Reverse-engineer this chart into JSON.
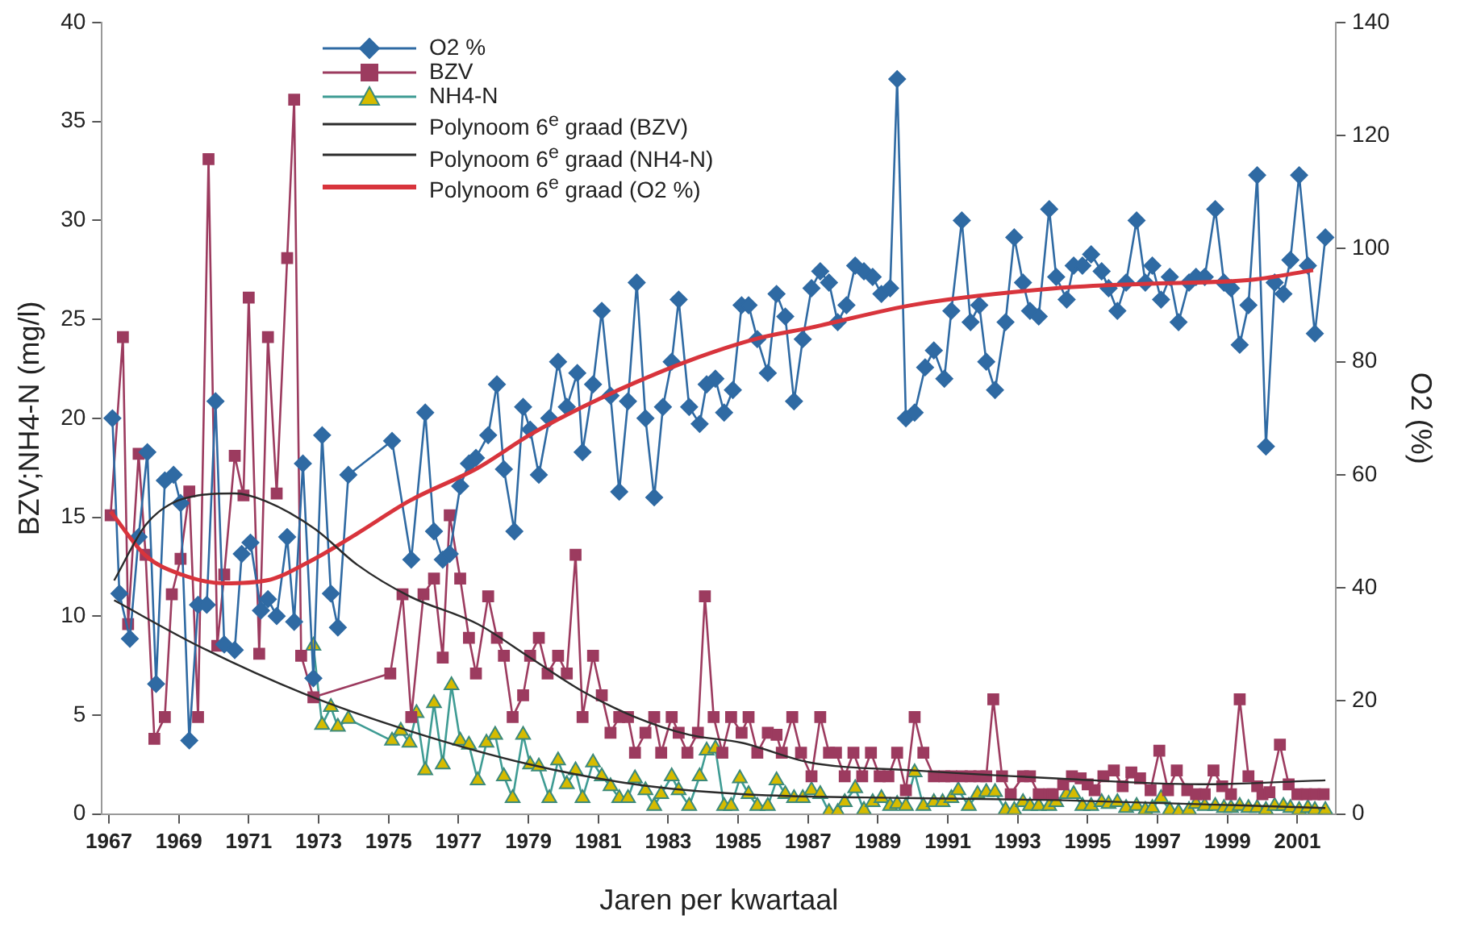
{
  "chart_data": {
    "type": "line",
    "xlabel": "Jaren per kwartaal",
    "ylabel": "BZV;NH4-N (mg/l)",
    "y2label": "O2 (%)",
    "xlim": [
      1966.8,
      2002.1
    ],
    "xticks": [
      1967,
      1969,
      1971,
      1973,
      1975,
      1977,
      1979,
      1981,
      1983,
      1985,
      1987,
      1989,
      1991,
      1993,
      1995,
      1997,
      1999,
      2001
    ],
    "ylim": [
      0,
      40
    ],
    "yticks": [
      0,
      5,
      10,
      15,
      20,
      25,
      30,
      35,
      40
    ],
    "y2lim": [
      0,
      140
    ],
    "y2ticks": [
      0,
      20,
      40,
      60,
      80,
      100,
      120,
      140
    ],
    "grid": false,
    "legend": "top left",
    "series": [
      {
        "name": "O2 %",
        "type": "line",
        "axis": "y2",
        "marker": "diamond",
        "color": "#2f6aa3",
        "x": [
          1967.1,
          1967.3,
          1967.6,
          1967.85,
          1968.1,
          1968.35,
          1968.6,
          1968.85,
          1969.05,
          1969.3,
          1969.55,
          1969.8,
          1970.05,
          1970.3,
          1970.6,
          1970.8,
          1971.05,
          1971.35,
          1971.55,
          1971.8,
          1972.1,
          1972.3,
          1972.55,
          1972.85,
          1973.1,
          1973.35,
          1973.55,
          1973.85,
          1975.1,
          1975.65,
          1976.05,
          1976.3,
          1976.55,
          1976.75,
          1977.05,
          1977.3,
          1977.5,
          1977.85,
          1978.1,
          1978.3,
          1978.6,
          1978.85,
          1979.05,
          1979.3,
          1979.6,
          1979.85,
          1980.1,
          1980.4,
          1980.55,
          1980.85,
          1981.1,
          1981.35,
          1981.6,
          1981.85,
          1982.1,
          1982.35,
          1982.6,
          1982.85,
          1983.1,
          1983.3,
          1983.6,
          1983.9,
          1984.1,
          1984.35,
          1984.6,
          1984.85,
          1985.1,
          1985.3,
          1985.55,
          1985.85,
          1986.1,
          1986.35,
          1986.6,
          1986.85,
          1987.1,
          1987.35,
          1987.6,
          1987.85,
          1988.1,
          1988.35,
          1988.6,
          1988.85,
          1989.1,
          1989.35,
          1989.55,
          1989.8,
          1990.05,
          1990.35,
          1990.6,
          1990.9,
          1991.1,
          1991.4,
          1991.65,
          1991.9,
          1992.1,
          1992.35,
          1992.65,
          1992.9,
          1993.15,
          1993.35,
          1993.6,
          1993.9,
          1994.1,
          1994.4,
          1994.6,
          1994.85,
          1995.1,
          1995.4,
          1995.6,
          1995.85,
          1996.1,
          1996.4,
          1996.65,
          1996.85,
          1997.1,
          1997.35,
          1997.6,
          1997.9,
          1998.1,
          1998.35,
          1998.65,
          1998.9,
          1999.1,
          1999.35,
          1999.6,
          1999.85,
          2000.1,
          2000.35,
          2000.6,
          2000.8,
          2001.05,
          2001.3,
          2001.5,
          2001.8
        ],
        "values": [
          70,
          39,
          31,
          49,
          64,
          23,
          59,
          60,
          55,
          13,
          37,
          37,
          73,
          30,
          29,
          46,
          48,
          36,
          38,
          35,
          49,
          34,
          62,
          24,
          67,
          39,
          33,
          60,
          66,
          45,
          71,
          50,
          45,
          46,
          58,
          62,
          63,
          67,
          76,
          61,
          50,
          72,
          68,
          60,
          70,
          80,
          72,
          78,
          64,
          76,
          89,
          74,
          57,
          73,
          94,
          70,
          56,
          72,
          80,
          91,
          72,
          69,
          76,
          77,
          71,
          75,
          90,
          90,
          84,
          78,
          92,
          88,
          73,
          84,
          93,
          96,
          94,
          87,
          90,
          97,
          96,
          95,
          92,
          93,
          130,
          70,
          71,
          79,
          82,
          77,
          89,
          105,
          87,
          90,
          80,
          75,
          87,
          102,
          94,
          89,
          88,
          107,
          95,
          91,
          97,
          97,
          99,
          96,
          93,
          89,
          94,
          105,
          94,
          97,
          91,
          95,
          87,
          94,
          95,
          95,
          107,
          94,
          93,
          83,
          90,
          113,
          65,
          94,
          92,
          98,
          113,
          97,
          85,
          102
        ]
      },
      {
        "name": "BZV",
        "type": "line",
        "axis": "y",
        "marker": "square",
        "color": "#9c3b5f",
        "x": [
          1967.05,
          1967.4,
          1967.55,
          1967.85,
          1968.05,
          1968.3,
          1968.6,
          1968.8,
          1969.05,
          1969.3,
          1969.55,
          1969.85,
          1970.1,
          1970.3,
          1970.6,
          1970.85,
          1971.0,
          1971.3,
          1971.55,
          1971.8,
          1972.1,
          1972.3,
          1972.5,
          1972.85,
          1975.05,
          1975.4,
          1975.65,
          1976.0,
          1976.3,
          1976.55,
          1976.75,
          1977.05,
          1977.3,
          1977.5,
          1977.85,
          1978.1,
          1978.3,
          1978.55,
          1978.85,
          1979.05,
          1979.3,
          1979.55,
          1979.85,
          1980.1,
          1980.35,
          1980.55,
          1980.85,
          1981.1,
          1981.35,
          1981.6,
          1981.85,
          1982.05,
          1982.35,
          1982.6,
          1982.8,
          1983.1,
          1983.3,
          1983.55,
          1983.85,
          1984.05,
          1984.3,
          1984.55,
          1984.8,
          1985.1,
          1985.3,
          1985.55,
          1985.85,
          1986.1,
          1986.25,
          1986.55,
          1986.8,
          1987.1,
          1987.35,
          1987.6,
          1987.8,
          1988.05,
          1988.3,
          1988.55,
          1988.8,
          1989.05,
          1989.3,
          1989.55,
          1989.8,
          1990.05,
          1990.3,
          1990.6,
          1990.9,
          1991.1,
          1991.4,
          1991.65,
          1991.9,
          1992.1,
          1992.3,
          1992.55,
          1992.8,
          1993.15,
          1993.35,
          1993.6,
          1993.9,
          1994.0,
          1994.3,
          1994.55,
          1994.8,
          1995.0,
          1995.2,
          1995.45,
          1995.75,
          1996.0,
          1996.25,
          1996.5,
          1996.8,
          1997.05,
          1997.3,
          1997.55,
          1997.85,
          1998.1,
          1998.35,
          1998.6,
          1998.85,
          1999.1,
          1999.35,
          1999.6,
          1999.85,
          2000.0,
          2000.2,
          2000.5,
          2000.75,
          2001.0,
          2001.25,
          2001.5,
          2001.75
        ],
        "values": [
          15.1,
          24.1,
          9.6,
          18.2,
          13.1,
          3.8,
          4.9,
          11.1,
          12.9,
          16.3,
          4.9,
          33.1,
          8.5,
          12.1,
          18.1,
          16.1,
          26.1,
          8.1,
          24.1,
          16.2,
          28.1,
          36.1,
          8,
          5.9,
          7.1,
          11.1,
          4.9,
          11.1,
          11.9,
          7.9,
          15.1,
          11.9,
          8.9,
          7.1,
          11,
          8.9,
          8,
          4.9,
          6,
          8,
          8.9,
          7.1,
          8,
          7.1,
          13.1,
          4.9,
          8,
          6,
          4.1,
          4.9,
          4.9,
          3.1,
          4.1,
          4.9,
          3.1,
          4.9,
          4.1,
          3.1,
          4.1,
          11,
          4.9,
          3.1,
          4.9,
          4.1,
          4.9,
          3.1,
          4.1,
          4,
          3.1,
          4.9,
          3.1,
          1.9,
          4.9,
          3.1,
          3.1,
          1.9,
          3.1,
          1.9,
          3.1,
          1.9,
          1.9,
          3.1,
          1.2,
          4.9,
          3.1,
          1.9,
          1.9,
          1.9,
          1.9,
          1.9,
          1.9,
          1.9,
          5.8,
          1.9,
          1,
          1.9,
          1.9,
          1,
          1,
          1,
          1.5,
          1.9,
          1.8,
          1.5,
          1.2,
          1.9,
          2.2,
          1.4,
          2.1,
          1.8,
          1.2,
          3.2,
          1.2,
          2.2,
          1.2,
          1,
          1,
          2.2,
          1.4,
          1,
          5.8,
          1.9,
          1.4,
          1,
          1.1,
          3.5,
          1.5,
          1,
          1,
          1,
          1
        ]
      },
      {
        "name": "NH4-N",
        "type": "line",
        "axis": "y",
        "marker": "triangle",
        "color": "#d6bb00",
        "x": [
          1972.85,
          1973.1,
          1973.35,
          1973.55,
          1973.85,
          1975.1,
          1975.35,
          1975.6,
          1975.8,
          1976.05,
          1976.3,
          1976.55,
          1976.8,
          1977.05,
          1977.3,
          1977.55,
          1977.8,
          1978.05,
          1978.3,
          1978.55,
          1978.85,
          1979.05,
          1979.3,
          1979.6,
          1979.85,
          1980.1,
          1980.35,
          1980.55,
          1980.85,
          1981.1,
          1981.35,
          1981.6,
          1981.85,
          1982.05,
          1982.35,
          1982.6,
          1982.8,
          1983.1,
          1983.3,
          1983.6,
          1983.9,
          1984.1,
          1984.35,
          1984.6,
          1984.8,
          1985.05,
          1985.3,
          1985.55,
          1985.85,
          1986.1,
          1986.35,
          1986.6,
          1986.85,
          1987.1,
          1987.35,
          1987.6,
          1987.85,
          1988.05,
          1988.35,
          1988.6,
          1988.85,
          1989.1,
          1989.35,
          1989.55,
          1989.8,
          1990.05,
          1990.3,
          1990.6,
          1990.85,
          1991.1,
          1991.3,
          1991.6,
          1991.85,
          1992.1,
          1992.35,
          1992.65,
          1992.9,
          1993.15,
          1993.35,
          1993.6,
          1993.9,
          1994.1,
          1994.4,
          1994.6,
          1994.85,
          1995.1,
          1995.4,
          1995.6,
          1995.85,
          1996.1,
          1996.4,
          1996.65,
          1996.85,
          1997.1,
          1997.35,
          1997.6,
          1997.9,
          1998.1,
          1998.35,
          1998.65,
          1998.9,
          1999.1,
          1999.35,
          1999.6,
          1999.85,
          2000.1,
          2000.35,
          2000.6,
          2000.8,
          2001.05,
          2001.3,
          2001.5,
          2001.8
        ],
        "values": [
          8.5,
          4.5,
          5.4,
          4.4,
          4.8,
          3.7,
          4.2,
          3.6,
          5.1,
          2.2,
          5.6,
          2.5,
          6.5,
          3.7,
          3.5,
          1.7,
          3.6,
          4,
          1.9,
          0.8,
          4,
          2.5,
          2.4,
          0.8,
          2.7,
          1.5,
          2.2,
          0.8,
          2.6,
          1.9,
          1.4,
          0.8,
          0.8,
          1.8,
          1.2,
          0.4,
          1,
          1.9,
          1.2,
          0.4,
          1.9,
          3.2,
          3.3,
          0.4,
          0.4,
          1.8,
          1,
          0.4,
          0.4,
          1.7,
          1,
          0.8,
          0.8,
          1.2,
          1,
          0.1,
          0.1,
          0.6,
          1.3,
          0.2,
          0.6,
          0.8,
          0.4,
          0.5,
          0.4,
          2.1,
          0.4,
          0.6,
          0.6,
          0.8,
          1.2,
          0.4,
          1,
          1.1,
          1.1,
          0.2,
          0.2,
          0.6,
          0.4,
          0.4,
          0.4,
          0.6,
          1,
          1,
          0.4,
          0.4,
          0.6,
          0.5,
          0.6,
          0.3,
          0.4,
          0.2,
          0.3,
          0.8,
          0.2,
          0.1,
          0.2,
          0.5,
          0.4,
          0.4,
          0.3,
          0.3,
          0.4,
          0.3,
          0.3,
          0.2,
          0.4,
          0.4,
          0.3,
          0.2,
          0.3,
          0.2,
          0.2
        ]
      },
      {
        "name": "Polynoom 6$^{e}$ graad (BZV)",
        "type": "line",
        "axis": "y",
        "marker": "none",
        "color": "#2b2b2b",
        "x": [
          1967.15,
          1968.05,
          1968.8,
          1969.55,
          1970.6,
          1971.5,
          1972.9,
          1974.1,
          1975.6,
          1977.55,
          1979.05,
          1980.55,
          1982.05,
          1983.6,
          1985.1,
          1987.05,
          1990.05,
          1994.1,
          1998.2,
          2001.8
        ],
        "values": [
          11.8,
          14.6,
          15.7,
          16.1,
          16.2,
          15.8,
          14.4,
          12.6,
          11,
          9.6,
          7.9,
          6.2,
          4.9,
          4,
          3.6,
          2.6,
          2.2,
          1.8,
          1.5,
          1.7
        ]
      },
      {
        "name": "Polynoom 6$^{e}$ graad (NH4-N)",
        "type": "line",
        "axis": "y",
        "marker": "none",
        "color": "#2b2b2b",
        "x": [
          1967.15,
          1969.55,
          1972.55,
          1975.6,
          1979.05,
          1982.05,
          1985.1,
          1990.05,
          1994.1,
          2001.8
        ],
        "values": [
          10.8,
          8.5,
          6.1,
          4.2,
          2.5,
          1.5,
          1,
          0.8,
          0.7,
          0.3
        ]
      },
      {
        "name": "Polynoom 6$^{e}$ graad (O2 %)",
        "type": "line",
        "axis": "y2",
        "marker": "none",
        "color": "#d8343c",
        "x": [
          1967.05,
          1968.05,
          1969.1,
          1970.3,
          1971.5,
          1972.9,
          1974.1,
          1975.6,
          1977.55,
          1979.05,
          1980.55,
          1982.05,
          1983.6,
          1985.55,
          1987.05,
          1990.05,
          1994.1,
          1996.7,
          1999.7,
          2001.45
        ],
        "values": [
          53.5,
          45.7,
          42.3,
          40.8,
          41.3,
          45.2,
          49.6,
          55.4,
          61.2,
          67.1,
          72,
          76.3,
          80.2,
          84.1,
          86,
          90.1,
          93,
          93.8,
          94.5,
          96.2
        ]
      }
    ]
  }
}
